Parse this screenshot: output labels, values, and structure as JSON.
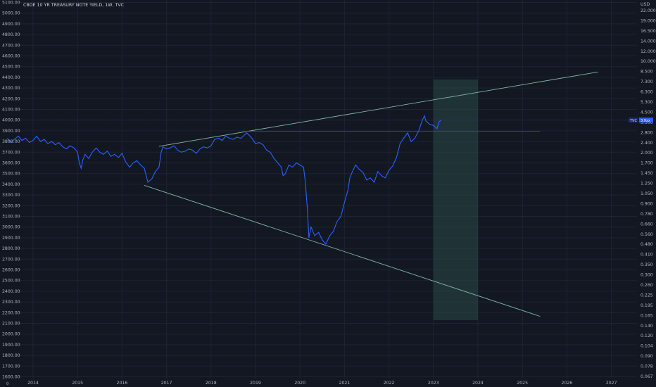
{
  "colors": {
    "background": "#131722",
    "price_line": "#2962ff",
    "trend_line": "#7fb7a0",
    "horizontal_line": "#3f3fb0",
    "projection_box": "#2a4a48",
    "tag_bg": "#1e2a6e",
    "tag_value_bg": "#2962ff"
  },
  "chart_data": {
    "type": "line",
    "title": "CBOE 10 YR TREASURY NOTE YIELD, 1W, TVC",
    "currency": "USD",
    "left_axis": {
      "min": 1600,
      "max": 5100,
      "ticks": [
        "5100.00",
        "5000.00",
        "4900.00",
        "4800.00",
        "4700.00",
        "4600.00",
        "4500.00",
        "4400.00",
        "4300.00",
        "4200.00",
        "4100.00",
        "4000.00",
        "3900.00",
        "3800.00",
        "3700.00",
        "3600.00",
        "3500.00",
        "3400.00",
        "3300.00",
        "3200.00",
        "3100.00",
        "3000.00",
        "2900.00",
        "2800.00",
        "2700.00",
        "2600.00",
        "2500.00",
        "2400.00",
        "2300.00",
        "2200.00",
        "2100.00",
        "2000.00",
        "1900.00",
        "1800.00",
        "1700.00",
        "1600.00"
      ]
    },
    "right_axis": {
      "ticks": [
        "22.000",
        "19.000",
        "16.500",
        "14.000",
        "12.000",
        "10.000",
        "8.500",
        "7.300",
        "6.300",
        "5.300",
        "4.500",
        "3.300",
        "2.800",
        "2.400",
        "2.000",
        "1.700",
        "1.450",
        "1.250",
        "1.050",
        "0.900",
        "0.780",
        "0.660",
        "0.560",
        "0.480",
        "0.410",
        "0.350",
        "0.300",
        "0.260",
        "0.225",
        "0.195",
        "0.165",
        "0.140",
        "0.120",
        "0.104",
        "0.090",
        "0.078",
        "0.067"
      ]
    },
    "x_axis": {
      "ticks": [
        "2014",
        "2015",
        "2016",
        "2017",
        "2018",
        "2019",
        "2020",
        "2021",
        "2022",
        "2023",
        "2024",
        "2025",
        "2026",
        "2027"
      ]
    },
    "price_tag": {
      "symbol": "TVC",
      "value": "3.9xx"
    },
    "series": [
      {
        "values": [
          [
            2013.42,
            3830
          ],
          [
            2013.5,
            3790
          ],
          [
            2013.58,
            3820
          ],
          [
            2013.67,
            3850
          ],
          [
            2013.75,
            3810
          ],
          [
            2013.83,
            3830
          ],
          [
            2013.92,
            3790
          ],
          [
            2014.0,
            3810
          ],
          [
            2014.08,
            3850
          ],
          [
            2014.17,
            3800
          ],
          [
            2014.25,
            3820
          ],
          [
            2014.33,
            3780
          ],
          [
            2014.42,
            3800
          ],
          [
            2014.5,
            3770
          ],
          [
            2014.58,
            3790
          ],
          [
            2014.67,
            3750
          ],
          [
            2014.75,
            3730
          ],
          [
            2014.83,
            3760
          ],
          [
            2014.92,
            3740
          ],
          [
            2015.0,
            3700
          ],
          [
            2015.04,
            3600
          ],
          [
            2015.08,
            3550
          ],
          [
            2015.12,
            3630
          ],
          [
            2015.17,
            3680
          ],
          [
            2015.25,
            3640
          ],
          [
            2015.33,
            3700
          ],
          [
            2015.42,
            3740
          ],
          [
            2015.5,
            3700
          ],
          [
            2015.58,
            3680
          ],
          [
            2015.67,
            3710
          ],
          [
            2015.75,
            3660
          ],
          [
            2015.83,
            3680
          ],
          [
            2015.92,
            3650
          ],
          [
            2016.0,
            3690
          ],
          [
            2016.08,
            3610
          ],
          [
            2016.17,
            3560
          ],
          [
            2016.25,
            3600
          ],
          [
            2016.33,
            3620
          ],
          [
            2016.42,
            3580
          ],
          [
            2016.5,
            3550
          ],
          [
            2016.58,
            3420
          ],
          [
            2016.67,
            3450
          ],
          [
            2016.75,
            3520
          ],
          [
            2016.83,
            3560
          ],
          [
            2016.88,
            3700
          ],
          [
            2016.92,
            3750
          ],
          [
            2017.0,
            3730
          ],
          [
            2017.08,
            3740
          ],
          [
            2017.17,
            3760
          ],
          [
            2017.25,
            3720
          ],
          [
            2017.33,
            3700
          ],
          [
            2017.42,
            3710
          ],
          [
            2017.5,
            3730
          ],
          [
            2017.58,
            3720
          ],
          [
            2017.67,
            3690
          ],
          [
            2017.75,
            3730
          ],
          [
            2017.83,
            3750
          ],
          [
            2017.92,
            3740
          ],
          [
            2018.0,
            3760
          ],
          [
            2018.08,
            3820
          ],
          [
            2018.17,
            3830
          ],
          [
            2018.25,
            3810
          ],
          [
            2018.33,
            3850
          ],
          [
            2018.42,
            3830
          ],
          [
            2018.5,
            3820
          ],
          [
            2018.58,
            3840
          ],
          [
            2018.67,
            3830
          ],
          [
            2018.75,
            3860
          ],
          [
            2018.8,
            3880
          ],
          [
            2018.83,
            3870
          ],
          [
            2018.92,
            3830
          ],
          [
            2019.0,
            3780
          ],
          [
            2019.08,
            3790
          ],
          [
            2019.17,
            3770
          ],
          [
            2019.25,
            3720
          ],
          [
            2019.33,
            3700
          ],
          [
            2019.42,
            3640
          ],
          [
            2019.5,
            3600
          ],
          [
            2019.58,
            3560
          ],
          [
            2019.62,
            3480
          ],
          [
            2019.67,
            3500
          ],
          [
            2019.75,
            3580
          ],
          [
            2019.83,
            3560
          ],
          [
            2019.92,
            3600
          ],
          [
            2020.0,
            3580
          ],
          [
            2020.08,
            3560
          ],
          [
            2020.12,
            3420
          ],
          [
            2020.17,
            3150
          ],
          [
            2020.2,
            2900
          ],
          [
            2020.25,
            3000
          ],
          [
            2020.33,
            2920
          ],
          [
            2020.42,
            2950
          ],
          [
            2020.5,
            2880
          ],
          [
            2020.58,
            2840
          ],
          [
            2020.67,
            2920
          ],
          [
            2020.75,
            2960
          ],
          [
            2020.83,
            3050
          ],
          [
            2020.92,
            3100
          ],
          [
            2021.0,
            3230
          ],
          [
            2021.08,
            3350
          ],
          [
            2021.12,
            3460
          ],
          [
            2021.17,
            3510
          ],
          [
            2021.25,
            3580
          ],
          [
            2021.33,
            3540
          ],
          [
            2021.42,
            3510
          ],
          [
            2021.5,
            3440
          ],
          [
            2021.58,
            3460
          ],
          [
            2021.67,
            3420
          ],
          [
            2021.75,
            3520
          ],
          [
            2021.83,
            3480
          ],
          [
            2021.92,
            3460
          ],
          [
            2022.0,
            3530
          ],
          [
            2022.08,
            3570
          ],
          [
            2022.17,
            3650
          ],
          [
            2022.25,
            3780
          ],
          [
            2022.33,
            3830
          ],
          [
            2022.42,
            3880
          ],
          [
            2022.5,
            3800
          ],
          [
            2022.58,
            3830
          ],
          [
            2022.67,
            3900
          ],
          [
            2022.75,
            4000
          ],
          [
            2022.8,
            4040
          ],
          [
            2022.83,
            3990
          ],
          [
            2022.92,
            3960
          ],
          [
            2023.0,
            3950
          ],
          [
            2023.08,
            3920
          ],
          [
            2023.12,
            3980
          ],
          [
            2023.17,
            4000
          ]
        ]
      }
    ],
    "lines": [
      {
        "kind": "upper-trend",
        "from": [
          2016.83,
          3755
        ],
        "to": [
          2026.7,
          4450
        ]
      },
      {
        "kind": "lower-trend",
        "from": [
          2016.5,
          3390
        ],
        "to": [
          2025.4,
          2165
        ]
      },
      {
        "kind": "horizontal",
        "from": [
          2018.75,
          3895
        ],
        "to": [
          2025.4,
          3895
        ]
      }
    ],
    "projection_box": {
      "x0": 2023.0,
      "x1": 2024.0,
      "y0": 2130,
      "y1": 4380
    }
  }
}
